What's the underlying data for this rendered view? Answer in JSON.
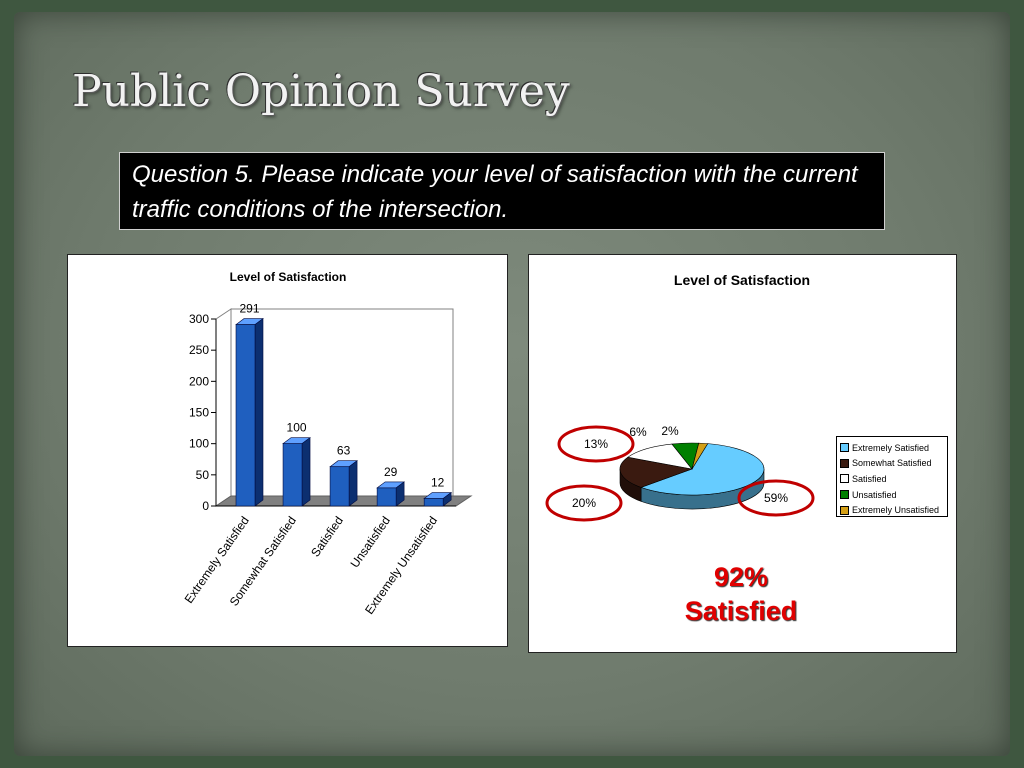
{
  "slide": {
    "title": "Public Opinion Survey",
    "question": "Question 5. Please indicate your level of satisfaction with the current traffic conditions of the intersection."
  },
  "chart_data": [
    {
      "type": "bar",
      "title": "Level of Satisfaction",
      "categories": [
        "Extremely Satisfied",
        "Somewhat Satisfied",
        "Satisfied",
        "Unsatisfied",
        "Extremely Unsatisfied"
      ],
      "values": [
        291,
        100,
        63,
        29,
        12
      ],
      "data_labels": [
        "291",
        "100",
        "63",
        "29",
        "12"
      ],
      "ylim": [
        0,
        300
      ],
      "yticks": [
        0,
        50,
        100,
        150,
        200,
        250,
        300
      ],
      "bar_color": "#1f5fbf",
      "three_d": true,
      "grid": false,
      "legend": "none"
    },
    {
      "type": "pie",
      "title": "Level of Satisfaction",
      "categories": [
        "Extremely Satisfied",
        "Somewhat Satisfied",
        "Satisfied",
        "Unsatisfied",
        "Extremely Unsatisfied"
      ],
      "values": [
        59,
        20,
        13,
        6,
        2
      ],
      "data_labels": [
        "59%",
        "20%",
        "13%",
        "6%",
        "2%"
      ],
      "colors": [
        "#66ccff",
        "#3a1a10",
        "#ffffff",
        "#008000",
        "#d4a017"
      ],
      "three_d": true,
      "legend": "right",
      "circled_labels": [
        "13%",
        "20%",
        "59%"
      ],
      "callout": {
        "line1": "92%",
        "line2": "Satisfied",
        "color": "#e00000"
      }
    }
  ]
}
